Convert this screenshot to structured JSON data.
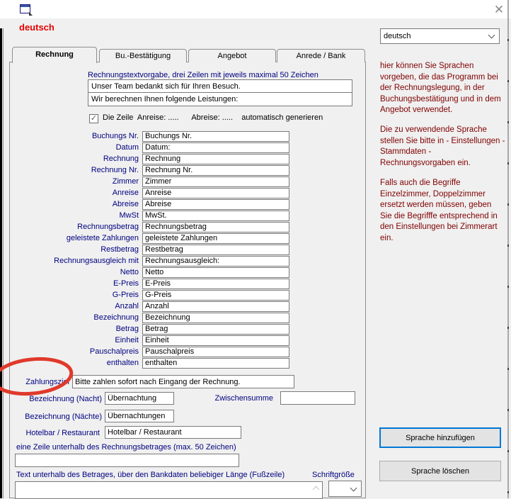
{
  "window": {
    "heading": "deutsch"
  },
  "icons": {
    "close": "✕",
    "checkmark": "✓"
  },
  "language_combo": {
    "value": "deutsch"
  },
  "tabs": [
    "Rechnung",
    "Bu.-Bestätigung",
    "Angebot",
    "Anrede / Bank"
  ],
  "active_tab": "Rechnung",
  "rechnung_tab": {
    "intro_label": "Rechnungstextvorgabe, drei  Zeilen mit jeweils maximal 50 Zeichen",
    "intro_lines": [
      "Unser Team bedankt sich für Ihren Besuch.",
      "Wir berechnen Ihnen folgende Leistungen:"
    ],
    "auto_line_checkbox": {
      "checked": true,
      "label": "Die Zeile  Anreise: .....      Abreise: .....    automatisch generieren"
    },
    "fields": [
      {
        "label": "Buchungs Nr.",
        "value": "Buchungs Nr."
      },
      {
        "label": "Datum",
        "value": "Datum:"
      },
      {
        "label": "Rechnung",
        "value": "Rechnung"
      },
      {
        "label": "Rechnung Nr.",
        "value": "Rechnung Nr."
      },
      {
        "label": "Zimmer",
        "value": "Zimmer"
      },
      {
        "label": "Anreise",
        "value": "Anreise"
      },
      {
        "label": "Abreise",
        "value": "Abreise"
      },
      {
        "label": "MwSt",
        "value": "MwSt."
      },
      {
        "label": "Rechnungsbetrag",
        "value": "Rechnungsbetrag"
      },
      {
        "label": "geleistete Zahlungen",
        "value": "geleistete Zahlungen"
      },
      {
        "label": "Restbetrag",
        "value": "Restbetrag"
      },
      {
        "label": "Rechnungsausgleich mit",
        "value": "Rechnungsausgleich:"
      },
      {
        "label": "Netto",
        "value": "Netto"
      },
      {
        "label": "E-Preis",
        "value": "E-Preis"
      },
      {
        "label": "G-Preis",
        "value": "G-Preis"
      },
      {
        "label": "Anzahl",
        "value": "Anzahl"
      },
      {
        "label": "Bezeichnung",
        "value": "Bezeichnung"
      },
      {
        "label": "Betrag",
        "value": "Betrag"
      },
      {
        "label": "Einheit",
        "value": "Einheit"
      },
      {
        "label": "Pauschalpreis",
        "value": "Pauschalpreis"
      },
      {
        "label": "enthalten",
        "value": "enthalten"
      }
    ],
    "zahlungsziel": {
      "label": "Zahlungsziel",
      "value": "Bitte zahlen sofort nach Eingang der Rechnung."
    },
    "bezeichnung_nacht": {
      "label": "Bezeichnung (Nacht)",
      "value": "Übernachtung"
    },
    "zwischensumme": {
      "label": "Zwischensumme",
      "value": ""
    },
    "bezeichnung_naechte": {
      "label": "Bezeichnung (Nächte)",
      "value": "Übernachtungen"
    },
    "hotelbar": {
      "label": "Hotelbar / Restaurant",
      "value": "Hotelbar / Restaurant"
    },
    "line_below_total": {
      "label": "eine Zeile unterhalb des Rechnungsbetrages (max. 50 Zeichen)",
      "value": ""
    },
    "footer": {
      "label": "Text unterhalb des Betrages, über den Bankdaten beliebiger Länge (Fußzeile)",
      "value": "",
      "fontsize_label": "Schriftgröße",
      "fontsize_value": ""
    }
  },
  "help_panel": {
    "paragraphs": [
      "hier können Sie Sprachen\nvorgeben, die das Programm bei\nder Rechnungslegung, in der\nBuchungsbestätigung und in  dem\nAngebot verwendet.",
      "Die zu verwendende Sprache\nstellen Sie bitte in - Einstellungen -\nStammdaten -\nRechnungsvorgaben  ein.",
      "Falls auch die Begriffe\nEinzelzimmer, Doppelzimmer\nersetzt werden müssen, geben\nSie die Begrifffe entsprechend in\nden Einstellungen bei  Zimmerart\nein."
    ]
  },
  "buttons": {
    "add": "Sprache hinzufügen",
    "delete": "Sprache löschen"
  },
  "colors": {
    "accent": "#0078d7",
    "label_blue": "#000080",
    "help_maroon": "#800000",
    "heading_red": "#e60000",
    "annotation_red": "#e0392b"
  }
}
